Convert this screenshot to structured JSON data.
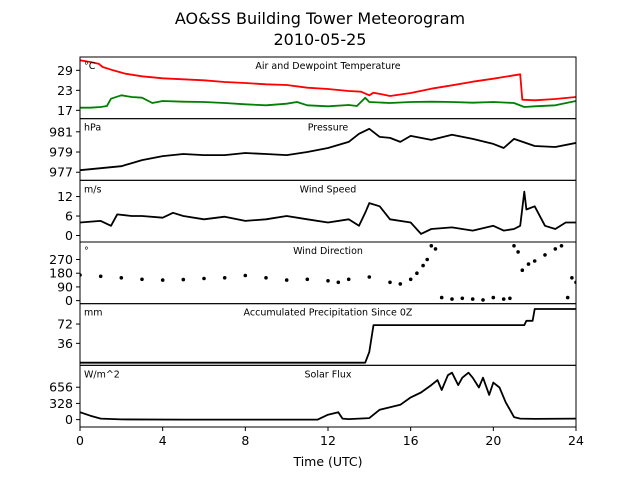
{
  "figure": {
    "title_line1": "AO&SS Building Tower Meteorogram",
    "title_line2": "2010-05-25",
    "xlabel": "Time (UTC)"
  },
  "x_axis": {
    "min": 0,
    "max": 24,
    "ticks": [
      0,
      4,
      8,
      12,
      16,
      20,
      24
    ]
  },
  "chart_data": [
    {
      "type": "line",
      "title": "Air and Dewpoint Temperature",
      "unit": "°C",
      "ylim": [
        14.5,
        33
      ],
      "yticks": [
        17,
        23,
        29
      ],
      "series": [
        {
          "color": "#ff0000",
          "points": [
            [
              0,
              32
            ],
            [
              0.5,
              31.5
            ],
            [
              0.9,
              31
            ],
            [
              1.1,
              30
            ],
            [
              1.6,
              29
            ],
            [
              2.2,
              28
            ],
            [
              3,
              27.2
            ],
            [
              4,
              26.6
            ],
            [
              5,
              26.3
            ],
            [
              6,
              26
            ],
            [
              7,
              25.5
            ],
            [
              8,
              25.2
            ],
            [
              9,
              24.8
            ],
            [
              10,
              24.6
            ],
            [
              11,
              23.8
            ],
            [
              12,
              23.4
            ],
            [
              13,
              22.8
            ],
            [
              13.6,
              22.6
            ],
            [
              14,
              21.5
            ],
            [
              14.2,
              22.3
            ],
            [
              14.6,
              21.8
            ],
            [
              15,
              21.3
            ],
            [
              16,
              22.2
            ],
            [
              17,
              23.5
            ],
            [
              18,
              24.5
            ],
            [
              19,
              25.6
            ],
            [
              20,
              26.5
            ],
            [
              21,
              27.5
            ],
            [
              21.3,
              27.8
            ],
            [
              21.4,
              20.2
            ],
            [
              22,
              20
            ],
            [
              23,
              20.4
            ],
            [
              24,
              21
            ]
          ]
        },
        {
          "color": "#008000",
          "points": [
            [
              0,
              17.8
            ],
            [
              0.5,
              17.8
            ],
            [
              1,
              18
            ],
            [
              1.3,
              18.3
            ],
            [
              1.5,
              20.5
            ],
            [
              2,
              21.5
            ],
            [
              2.5,
              21
            ],
            [
              3,
              20.8
            ],
            [
              3.5,
              19.2
            ],
            [
              4,
              19.8
            ],
            [
              5,
              19.6
            ],
            [
              6,
              19.5
            ],
            [
              7,
              19.2
            ],
            [
              8,
              18.8
            ],
            [
              9,
              18.5
            ],
            [
              10,
              19
            ],
            [
              10.5,
              19.5
            ],
            [
              11,
              18.5
            ],
            [
              12,
              18.2
            ],
            [
              13,
              18.6
            ],
            [
              13.4,
              18.3
            ],
            [
              13.8,
              20.8
            ],
            [
              14,
              19.5
            ],
            [
              15,
              19.2
            ],
            [
              16,
              19.5
            ],
            [
              17,
              19.6
            ],
            [
              18,
              19.5
            ],
            [
              19,
              19.3
            ],
            [
              20,
              19.5
            ],
            [
              21,
              19.2
            ],
            [
              21.5,
              18
            ],
            [
              22,
              18.2
            ],
            [
              23,
              18.5
            ],
            [
              24,
              19.8
            ]
          ]
        }
      ]
    },
    {
      "type": "line",
      "title": "Pressure",
      "unit": "hPa",
      "ylim": [
        976.2,
        982.3
      ],
      "yticks": [
        977,
        979,
        981
      ],
      "series": [
        {
          "color": "#000000",
          "points": [
            [
              0,
              977.2
            ],
            [
              1,
              977.4
            ],
            [
              2,
              977.6
            ],
            [
              3,
              978.2
            ],
            [
              4,
              978.6
            ],
            [
              5,
              978.8
            ],
            [
              6,
              978.7
            ],
            [
              7,
              978.7
            ],
            [
              8,
              978.9
            ],
            [
              9,
              978.8
            ],
            [
              10,
              978.7
            ],
            [
              11,
              979
            ],
            [
              12,
              979.4
            ],
            [
              13,
              980
            ],
            [
              13.5,
              980.8
            ],
            [
              14,
              981.3
            ],
            [
              14.5,
              980.5
            ],
            [
              15,
              980.4
            ],
            [
              15.5,
              980
            ],
            [
              16,
              980.6
            ],
            [
              17,
              980.2
            ],
            [
              18,
              980.7
            ],
            [
              19,
              980.3
            ],
            [
              20,
              979.8
            ],
            [
              20.5,
              979.4
            ],
            [
              21,
              980.3
            ],
            [
              22,
              979.6
            ],
            [
              23,
              979.5
            ],
            [
              24,
              979.9
            ]
          ]
        }
      ]
    },
    {
      "type": "line",
      "title": "Wind Speed",
      "unit": "m/s",
      "ylim": [
        -2,
        17
      ],
      "yticks": [
        0,
        6,
        12
      ],
      "series": [
        {
          "color": "#000000",
          "points": [
            [
              0,
              4
            ],
            [
              1,
              4.5
            ],
            [
              1.5,
              3
            ],
            [
              1.8,
              6.5
            ],
            [
              2.5,
              6
            ],
            [
              3,
              6
            ],
            [
              4,
              5.5
            ],
            [
              4.5,
              7
            ],
            [
              5,
              6
            ],
            [
              6,
              5
            ],
            [
              7,
              5.8
            ],
            [
              8,
              4.5
            ],
            [
              9,
              5
            ],
            [
              10,
              6
            ],
            [
              11,
              5
            ],
            [
              12,
              4
            ],
            [
              13,
              5
            ],
            [
              13.5,
              3
            ],
            [
              13.8,
              7
            ],
            [
              14,
              10
            ],
            [
              14.5,
              9
            ],
            [
              15,
              5
            ],
            [
              16,
              4
            ],
            [
              16.5,
              0.5
            ],
            [
              17,
              2
            ],
            [
              18,
              2.5
            ],
            [
              19,
              1.5
            ],
            [
              20,
              3
            ],
            [
              20.5,
              1.5
            ],
            [
              21,
              2
            ],
            [
              21.3,
              3
            ],
            [
              21.5,
              13.5
            ],
            [
              21.6,
              8
            ],
            [
              22,
              9
            ],
            [
              22.5,
              3
            ],
            [
              23,
              2
            ],
            [
              23.5,
              4
            ],
            [
              24,
              4
            ]
          ]
        }
      ]
    },
    {
      "type": "scatter",
      "title": "Wind Direction",
      "unit": "°",
      "ylim": [
        -20,
        385
      ],
      "yticks": [
        0,
        90,
        180,
        270
      ],
      "series": [
        {
          "color": "#000000",
          "points": [
            [
              0,
              168
            ],
            [
              1,
              160
            ],
            [
              2,
              150
            ],
            [
              3,
              140
            ],
            [
              4,
              135
            ],
            [
              5,
              138
            ],
            [
              6,
              145
            ],
            [
              7,
              150
            ],
            [
              8,
              165
            ],
            [
              9,
              150
            ],
            [
              10,
              135
            ],
            [
              11,
              140
            ],
            [
              12,
              130
            ],
            [
              12.5,
              120
            ],
            [
              13,
              140
            ],
            [
              14,
              155
            ],
            [
              15,
              120
            ],
            [
              15.5,
              110
            ],
            [
              16,
              140
            ],
            [
              16.3,
              180
            ],
            [
              16.6,
              230
            ],
            [
              16.8,
              270
            ],
            [
              17,
              360
            ],
            [
              17.2,
              340
            ],
            [
              17.5,
              20
            ],
            [
              18,
              10
            ],
            [
              18.5,
              15
            ],
            [
              19,
              10
            ],
            [
              19.5,
              5
            ],
            [
              20,
              20
            ],
            [
              20.5,
              10
            ],
            [
              20.8,
              15
            ],
            [
              21,
              360
            ],
            [
              21.2,
              320
            ],
            [
              21.4,
              200
            ],
            [
              21.7,
              240
            ],
            [
              22,
              260
            ],
            [
              22.5,
              300
            ],
            [
              23,
              340
            ],
            [
              23.3,
              360
            ],
            [
              23.6,
              20
            ],
            [
              23.8,
              150
            ],
            [
              24,
              120
            ]
          ]
        }
      ]
    },
    {
      "type": "line",
      "title": "Accumulated Precipitation Since 0Z",
      "unit": "mm",
      "ylim": [
        -5,
        110
      ],
      "yticks": [
        36,
        72
      ],
      "series": [
        {
          "color": "#000000",
          "points": [
            [
              0,
              0
            ],
            [
              13.8,
              0
            ],
            [
              14,
              20
            ],
            [
              14.2,
              70
            ],
            [
              21.5,
              70
            ],
            [
              21.6,
              78
            ],
            [
              21.9,
              78
            ],
            [
              22,
              100
            ],
            [
              24,
              100
            ]
          ]
        }
      ]
    },
    {
      "type": "line",
      "title": "Solar Flux",
      "unit": "W/m^2",
      "ylim": [
        -150,
        1100
      ],
      "yticks": [
        0,
        328,
        656
      ],
      "series": [
        {
          "color": "#000000",
          "points": [
            [
              0,
              150
            ],
            [
              0.5,
              80
            ],
            [
              1,
              20
            ],
            [
              2,
              5
            ],
            [
              5,
              0
            ],
            [
              11.5,
              0
            ],
            [
              12,
              100
            ],
            [
              12.5,
              150
            ],
            [
              12.7,
              20
            ],
            [
              13,
              10
            ],
            [
              13.5,
              20
            ],
            [
              14,
              30
            ],
            [
              14.5,
              200
            ],
            [
              15,
              250
            ],
            [
              15.5,
              300
            ],
            [
              16,
              450
            ],
            [
              16.5,
              550
            ],
            [
              17,
              700
            ],
            [
              17.3,
              800
            ],
            [
              17.5,
              600
            ],
            [
              17.8,
              900
            ],
            [
              18,
              950
            ],
            [
              18.3,
              700
            ],
            [
              18.5,
              850
            ],
            [
              18.8,
              950
            ],
            [
              19,
              850
            ],
            [
              19.3,
              650
            ],
            [
              19.5,
              850
            ],
            [
              19.8,
              500
            ],
            [
              20,
              750
            ],
            [
              20.3,
              650
            ],
            [
              20.6,
              350
            ],
            [
              20.8,
              200
            ],
            [
              21,
              50
            ],
            [
              21.3,
              20
            ],
            [
              22,
              15
            ],
            [
              24,
              20
            ]
          ]
        }
      ]
    }
  ]
}
